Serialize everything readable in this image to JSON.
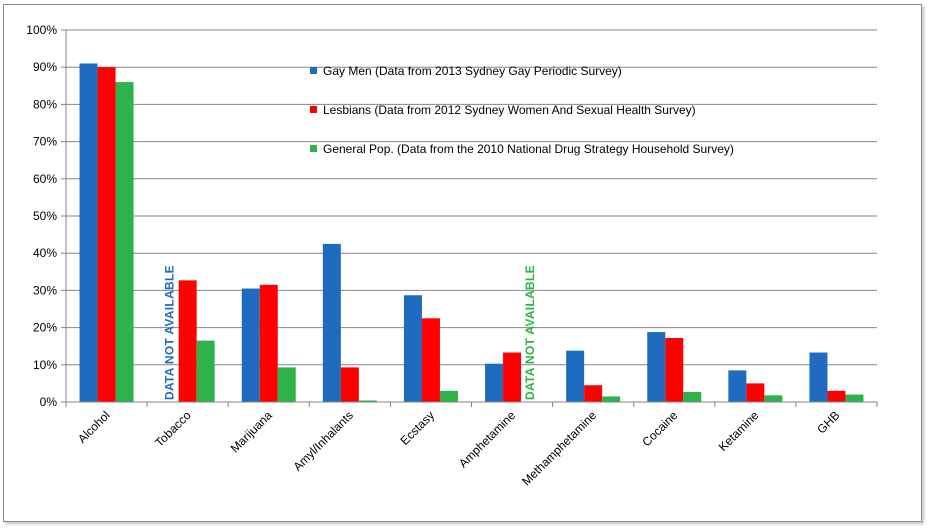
{
  "chart_data": {
    "type": "bar",
    "categories": [
      "Alcohol",
      "Tobacco",
      "Marijuana",
      "Amyl/Inhalants",
      "Ecstasy",
      "Amphetamine",
      "Methamphetamine",
      "Cocaine",
      "Ketamine",
      "GHB"
    ],
    "series": [
      {
        "name": "Gay Men (Data from 2013 Sydney Gay Periodic Survey)",
        "color": "#1f6bbf",
        "values": [
          91,
          null,
          30.5,
          42.5,
          28.7,
          10.3,
          13.8,
          18.8,
          8.5,
          13.3
        ]
      },
      {
        "name": "Lesbians (Data from 2012 Sydney Women And Sexual Health Survey)",
        "color": "#ff0000",
        "values": [
          90,
          32.7,
          31.5,
          9.3,
          22.5,
          13.3,
          4.5,
          17.2,
          5.0,
          3.0
        ]
      },
      {
        "name": "General Pop. (Data from the 2010 National Drug Strategy Household Survey)",
        "color": "#2eb34a",
        "values": [
          86,
          16.5,
          9.3,
          0.4,
          3.0,
          null,
          1.5,
          2.7,
          1.8,
          2.0
        ]
      }
    ],
    "ylim": [
      0,
      100
    ],
    "yticks": [
      "0%",
      "10%",
      "20%",
      "30%",
      "40%",
      "50%",
      "60%",
      "70%",
      "80%",
      "90%",
      "100%"
    ],
    "grid": true,
    "legend_position": "top-center",
    "annotations": [
      {
        "text": "DATA NOT AVAILABLE",
        "category": "Tobacco",
        "series": "Gay Men (Data from 2013 Sydney Gay Periodic Survey)",
        "color": "#1f6bbf"
      },
      {
        "text": "DATA NOT AVAILABLE",
        "category": "Amphetamine",
        "series": "General Pop. (Data from the 2010 National Drug Strategy Household Survey)",
        "color": "#2eb34a"
      }
    ]
  }
}
